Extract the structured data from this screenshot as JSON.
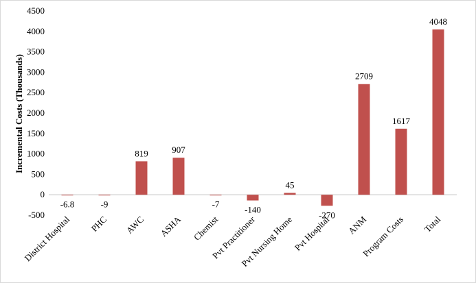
{
  "chart_data": {
    "type": "bar",
    "title": "",
    "xlabel": "",
    "ylabel": "Incremental Costs (Thousands)",
    "ylim": [
      -500,
      4500
    ],
    "ytick_step": 500,
    "grid": false,
    "legend": "none",
    "bar_color": "#c0504d",
    "categories": [
      "District Hospital",
      "PHC",
      "AWC",
      "ASHA",
      "Chemist",
      "Pvt Practitioner",
      "Pvt Nursing Home",
      "Pvt Hospital",
      "ANM",
      "Program Costs",
      "Total"
    ],
    "values": [
      -6.8,
      -9,
      819,
      907,
      -7,
      -140,
      45,
      -270,
      2709,
      1617,
      4048
    ],
    "labels": [
      "-6.8",
      "-9",
      "819",
      "907",
      "-7",
      "-140",
      "45",
      "-270",
      "2709",
      "1617",
      "4048"
    ]
  }
}
